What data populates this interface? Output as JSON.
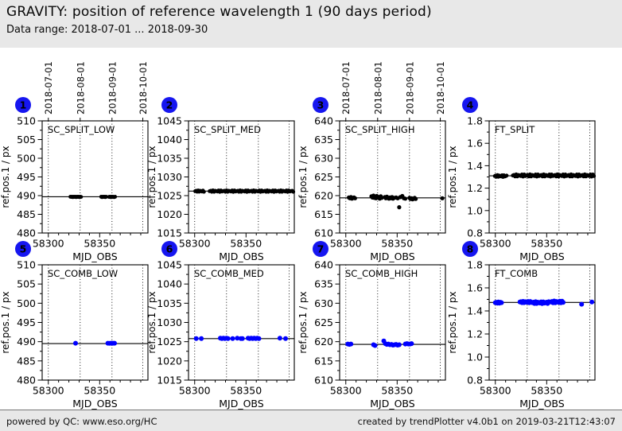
{
  "header": {
    "title": "GRAVITY: position of reference wavelength 1 (90 days period)",
    "subtitle": "Data range: 2018-07-01 ... 2018-09-30"
  },
  "footer": {
    "left": "powered by QC: www.eso.org/HC",
    "right": "created by trendPlotter v4.0b1 on 2019-03-21T12:43:07"
  },
  "colors": {
    "chrome_bg": "#e8e8e8",
    "badge_blue": "#1616f0",
    "point_black": "#000000",
    "point_blue": "#0000ff",
    "axis": "#000000"
  },
  "axes_common": {
    "xlabel": "MJD_OBS",
    "ylabel": "ref.pos.1 / px",
    "x_range": [
      58294,
      58397
    ],
    "x_major_ticks": [
      58300,
      58350
    ],
    "x_minor_step": 10,
    "date_gridlines": [
      {
        "mjd": 58300,
        "label": "2018-07-01"
      },
      {
        "mjd": 58331,
        "label": "2018-08-01"
      },
      {
        "mjd": 58362,
        "label": "2018-09-01"
      },
      {
        "mjd": 58392,
        "label": "2018-10-01"
      }
    ]
  },
  "chart_data": [
    {
      "type": "scatter",
      "badge": "1",
      "label": "SC_SPLIT_LOW",
      "ylabel": "ref.pos.1 / px",
      "xlabel": "MJD_OBS",
      "y_range": [
        480,
        510
      ],
      "y_major_step": 5,
      "y_minor_step": 2.5,
      "trend_line_y": 489.7,
      "show_date_labels": true,
      "point_color": "#000000",
      "point_radius": 2.4,
      "points": [
        [
          58321.5,
          489.7
        ],
        [
          58322.3,
          489.65
        ],
        [
          58323.1,
          489.7
        ],
        [
          58323.9,
          489.6
        ],
        [
          58324.7,
          489.7
        ],
        [
          58325.5,
          489.65
        ],
        [
          58326.3,
          489.7
        ],
        [
          58327.1,
          489.6
        ],
        [
          58327.9,
          489.7
        ],
        [
          58328.7,
          489.65
        ],
        [
          58329.5,
          489.7
        ],
        [
          58330.3,
          489.6
        ],
        [
          58331.1,
          489.7
        ],
        [
          58331.9,
          489.65
        ],
        [
          58351.5,
          489.7
        ],
        [
          58352.3,
          489.6
        ],
        [
          58353.1,
          489.7
        ],
        [
          58353.9,
          489.65
        ],
        [
          58354.7,
          489.7
        ],
        [
          58355.5,
          489.6
        ],
        [
          58356.3,
          489.7
        ],
        [
          58359,
          489.65
        ],
        [
          58359.8,
          489.7
        ],
        [
          58360.6,
          489.6
        ],
        [
          58361.4,
          489.7
        ],
        [
          58362.2,
          489.65
        ],
        [
          58363,
          489.7
        ],
        [
          58364,
          489.6
        ],
        [
          58365,
          489.7
        ]
      ]
    },
    {
      "type": "scatter",
      "badge": "2",
      "label": "SC_SPLIT_MED",
      "ylabel": "ref.pos.1 / px",
      "xlabel": "MJD_OBS",
      "y_range": [
        1015,
        1045
      ],
      "y_major_step": 5,
      "y_minor_step": 2.5,
      "trend_line_y": 1026.2,
      "show_date_labels": false,
      "point_color": "#000000",
      "point_radius": 2.4,
      "bands": [
        {
          "x0": 58300.5,
          "x1": 58309,
          "y": 1026.2,
          "n": 10,
          "jy": 0.18
        },
        {
          "x0": 58314.5,
          "x1": 58396,
          "y": 1026.2,
          "n": 75,
          "jy": 0.2
        }
      ],
      "points": []
    },
    {
      "type": "scatter",
      "badge": "3",
      "label": "SC_SPLIT_HIGH",
      "ylabel": "ref.pos.1 / px",
      "xlabel": "MJD_OBS",
      "y_range": [
        610,
        640
      ],
      "y_major_step": 5,
      "y_minor_step": 2.5,
      "trend_line_y": 619.4,
      "show_date_labels": true,
      "point_color": "#000000",
      "point_radius": 2.6,
      "points": [
        [
          58303,
          619.5
        ],
        [
          58304,
          619.3
        ],
        [
          58305,
          619.6
        ],
        [
          58306,
          619.2
        ],
        [
          58307,
          619.4
        ],
        [
          58308,
          619.5
        ],
        [
          58309,
          619.3
        ],
        [
          58325,
          619.8
        ],
        [
          58326,
          619.5
        ],
        [
          58327,
          620.0
        ],
        [
          58327.8,
          619.4
        ],
        [
          58328.6,
          619.7
        ],
        [
          58329.4,
          619.3
        ],
        [
          58330.2,
          619.9
        ],
        [
          58331,
          619.5
        ],
        [
          58332,
          619.6
        ],
        [
          58333,
          619.2
        ],
        [
          58334,
          619.8
        ],
        [
          58335,
          619.4
        ],
        [
          58338,
          619.6
        ],
        [
          58339,
          619.3
        ],
        [
          58340,
          619.7
        ],
        [
          58341,
          619.4
        ],
        [
          58342,
          619.2
        ],
        [
          58343,
          619.5
        ],
        [
          58344,
          619.3
        ],
        [
          58345,
          619.6
        ],
        [
          58346,
          619.2
        ],
        [
          58347,
          619.4
        ],
        [
          58349,
          619.5
        ],
        [
          58350.5,
          619.3
        ],
        [
          58352,
          616.9
        ],
        [
          58353,
          619.6
        ],
        [
          58355,
          619.9
        ],
        [
          58356.5,
          619.3
        ],
        [
          58358,
          619.2
        ],
        [
          58362,
          619.4
        ],
        [
          58363,
          619.1
        ],
        [
          58364,
          619.3
        ],
        [
          58365,
          619.0
        ],
        [
          58366,
          619.2
        ],
        [
          58367,
          619.4
        ],
        [
          58368,
          619.1
        ],
        [
          58394,
          619.3
        ]
      ]
    },
    {
      "type": "scatter",
      "badge": "4",
      "label": "FT_SPLIT",
      "ylabel": "ref.pos.1 / px",
      "xlabel": "MJD_OBS",
      "y_range": [
        0.8,
        1.8
      ],
      "y_major_step": 0.2,
      "y_minor_step": 0.1,
      "trend_line_y": 1.31,
      "show_date_labels": false,
      "point_color": "#000000",
      "point_radius": 2.4,
      "bands": [
        {
          "x0": 58299.5,
          "x1": 58311,
          "y": 1.308,
          "n": 14,
          "jy": 0.008
        },
        {
          "x0": 58317,
          "x1": 58396,
          "y": 1.313,
          "n": 72,
          "jy": 0.01
        }
      ],
      "points": []
    },
    {
      "type": "scatter",
      "badge": "5",
      "label": "SC_COMB_LOW",
      "ylabel": "ref.pos.1 / px",
      "xlabel": "MJD_OBS",
      "y_range": [
        480,
        510
      ],
      "y_major_step": 5,
      "y_minor_step": 2.5,
      "trend_line_y": 489.5,
      "show_date_labels": false,
      "point_color": "#0000ff",
      "point_radius": 3,
      "points": [
        [
          58326.5,
          489.6
        ],
        [
          58358,
          489.6
        ],
        [
          58359.5,
          489.55
        ],
        [
          58361,
          489.6
        ],
        [
          58362,
          489.55
        ],
        [
          58363,
          489.6
        ],
        [
          58364.5,
          489.6
        ]
      ]
    },
    {
      "type": "scatter",
      "badge": "6",
      "label": "SC_COMB_MED",
      "ylabel": "ref.pos.1 / px",
      "xlabel": "MJD_OBS",
      "y_range": [
        1015,
        1045
      ],
      "y_major_step": 5,
      "y_minor_step": 2.5,
      "trend_line_y": 1025.8,
      "show_date_labels": false,
      "point_color": "#0000ff",
      "point_radius": 3,
      "points": [
        [
          58301.5,
          1025.8
        ],
        [
          58306.5,
          1025.8
        ],
        [
          58325,
          1025.9
        ],
        [
          58326.5,
          1025.8
        ],
        [
          58328,
          1025.9
        ],
        [
          58329.5,
          1025.8
        ],
        [
          58331,
          1025.9
        ],
        [
          58332.5,
          1025.8
        ],
        [
          58337,
          1025.8
        ],
        [
          58341.5,
          1025.9
        ],
        [
          58345,
          1025.8
        ],
        [
          58346.5,
          1025.8
        ],
        [
          58352,
          1025.9
        ],
        [
          58353.5,
          1025.8
        ],
        [
          58355,
          1025.9
        ],
        [
          58356.5,
          1025.8
        ],
        [
          58358,
          1025.9
        ],
        [
          58359.5,
          1025.8
        ],
        [
          58361,
          1025.9
        ],
        [
          58362.5,
          1025.8
        ],
        [
          58383,
          1025.9
        ],
        [
          58388.5,
          1025.8
        ]
      ]
    },
    {
      "type": "scatter",
      "badge": "7",
      "label": "SC_COMB_HIGH",
      "ylabel": "ref.pos.1 / px",
      "xlabel": "MJD_OBS",
      "y_range": [
        610,
        640
      ],
      "y_major_step": 5,
      "y_minor_step": 2.5,
      "trend_line_y": 619.3,
      "show_date_labels": false,
      "point_color": "#0000ff",
      "point_radius": 3,
      "points": [
        [
          58302,
          619.4
        ],
        [
          58303.5,
          619.3
        ],
        [
          58305,
          619.4
        ],
        [
          58327,
          619.2
        ],
        [
          58328.5,
          619.0
        ],
        [
          58337,
          620.2
        ],
        [
          58338.5,
          619.5
        ],
        [
          58340,
          619.3
        ],
        [
          58341.5,
          619.4
        ],
        [
          58343,
          619.2
        ],
        [
          58344.5,
          619.3
        ],
        [
          58346,
          619.1
        ],
        [
          58347.5,
          619.2
        ],
        [
          58349,
          619.3
        ],
        [
          58350.5,
          619.1
        ],
        [
          58352,
          619.2
        ],
        [
          58358,
          619.4
        ],
        [
          58359.5,
          619.5
        ],
        [
          58361,
          619.4
        ],
        [
          58362.5,
          619.4
        ],
        [
          58364,
          619.5
        ]
      ]
    },
    {
      "type": "scatter",
      "badge": "8",
      "label": "FT_COMB",
      "ylabel": "ref.pos.1 / px",
      "xlabel": "MJD_OBS",
      "y_range": [
        0.8,
        1.8
      ],
      "y_major_step": 0.2,
      "y_minor_step": 0.1,
      "trend_line_y": 1.474,
      "show_date_labels": false,
      "point_color": "#0000ff",
      "point_radius": 3,
      "bands": [
        {
          "x0": 58300,
          "x1": 58306,
          "y": 1.472,
          "n": 7,
          "jy": 0.006
        },
        {
          "x0": 58324,
          "x1": 58334,
          "y": 1.477,
          "n": 11,
          "jy": 0.006
        },
        {
          "x0": 58336,
          "x1": 58352,
          "y": 1.472,
          "n": 16,
          "jy": 0.008
        },
        {
          "x0": 58354,
          "x1": 58366,
          "y": 1.478,
          "n": 12,
          "jy": 0.008
        }
      ],
      "points": [
        [
          58384,
          1.458
        ],
        [
          58394,
          1.477
        ]
      ]
    }
  ]
}
